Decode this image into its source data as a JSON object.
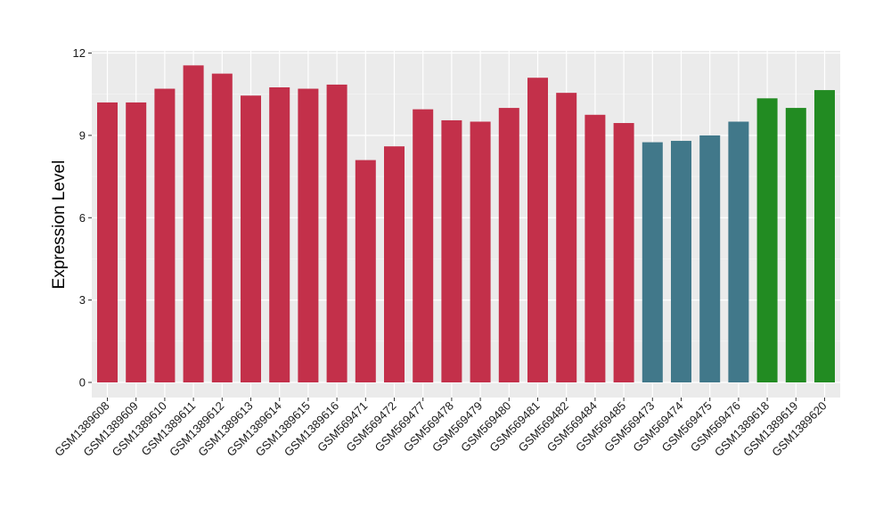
{
  "chart_data": {
    "type": "bar",
    "ylabel": "Expression Level",
    "xlabel": "",
    "ylim": [
      0,
      12
    ],
    "yticks": [
      0,
      3,
      6,
      9,
      12
    ],
    "grid": true,
    "panel_background": "#ebebeb",
    "categories": [
      "GSM1389608",
      "GSM1389609",
      "GSM1389610",
      "GSM1389611",
      "GSM1389612",
      "GSM1389613",
      "GSM1389614",
      "GSM1389615",
      "GSM1389616",
      "GSM569471",
      "GSM569472",
      "GSM569477",
      "GSM569478",
      "GSM569479",
      "GSM569480",
      "GSM569481",
      "GSM569482",
      "GSM569484",
      "GSM569485",
      "GSM569473",
      "GSM569474",
      "GSM569475",
      "GSM569476",
      "GSM1389618",
      "GSM1389619",
      "GSM1389620"
    ],
    "values": [
      10.2,
      10.2,
      10.7,
      11.55,
      11.25,
      10.45,
      10.75,
      10.7,
      10.85,
      8.1,
      8.6,
      9.95,
      9.55,
      9.5,
      10.0,
      11.1,
      10.55,
      9.75,
      9.45,
      8.75,
      8.8,
      9.0,
      9.5,
      10.35,
      10.0,
      10.65
    ],
    "bar_colors": [
      "#c3304a",
      "#c3304a",
      "#c3304a",
      "#c3304a",
      "#c3304a",
      "#c3304a",
      "#c3304a",
      "#c3304a",
      "#c3304a",
      "#c3304a",
      "#c3304a",
      "#c3304a",
      "#c3304a",
      "#c3304a",
      "#c3304a",
      "#c3304a",
      "#c3304a",
      "#c3304a",
      "#c3304a",
      "#41788a",
      "#41788a",
      "#41788a",
      "#41788a",
      "#228b22",
      "#228b22",
      "#228b22"
    ]
  }
}
